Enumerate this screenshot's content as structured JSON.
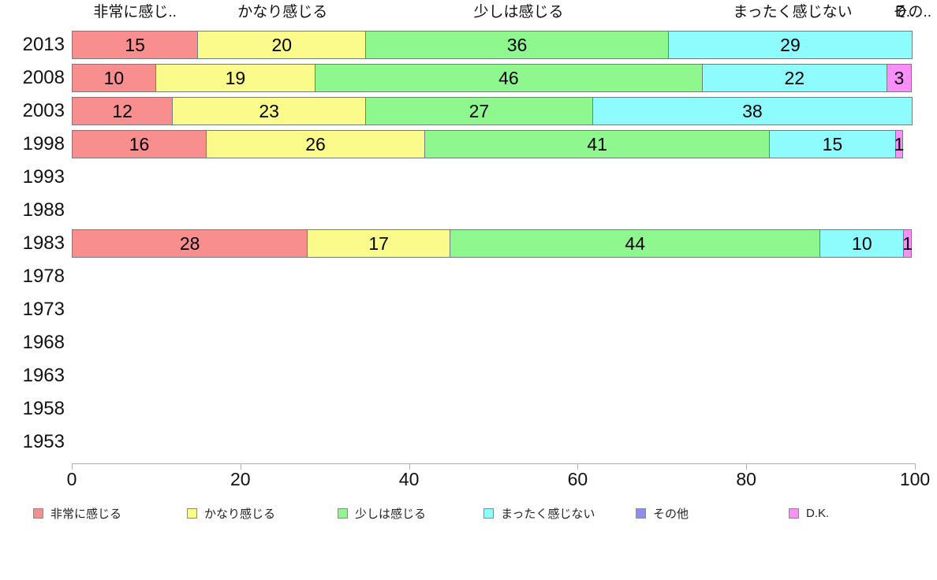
{
  "chart_data": {
    "type": "bar",
    "orientation": "horizontal",
    "stacked": true,
    "title": "",
    "xlabel": "",
    "ylabel": "",
    "xlim": [
      0,
      100
    ],
    "xticks": [
      "0",
      "20",
      "40",
      "60",
      "80",
      "100"
    ],
    "grid": false,
    "legend_position": "bottom",
    "categories": [
      "2013",
      "2008",
      "2003",
      "1998",
      "1993",
      "1988",
      "1983",
      "1978",
      "1973",
      "1968",
      "1963",
      "1958",
      "1953"
    ],
    "series": [
      {
        "name": "非常に感じる",
        "color": "#f98e8e",
        "values": [
          15,
          10,
          12,
          16,
          null,
          null,
          28,
          null,
          null,
          null,
          null,
          null,
          null
        ]
      },
      {
        "name": "かなり感じる",
        "color": "#fbfb8b",
        "values": [
          20,
          19,
          23,
          26,
          null,
          null,
          17,
          null,
          null,
          null,
          null,
          null,
          null
        ]
      },
      {
        "name": "少しは感じる",
        "color": "#8ef88e",
        "values": [
          36,
          46,
          27,
          41,
          null,
          null,
          44,
          null,
          null,
          null,
          null,
          null,
          null
        ]
      },
      {
        "name": "まったく感じない",
        "color": "#8efcfc",
        "values": [
          29,
          22,
          38,
          15,
          null,
          null,
          10,
          null,
          null,
          null,
          null,
          null,
          null
        ]
      },
      {
        "name": "その他",
        "color": "#8d8df2",
        "values": [
          null,
          null,
          null,
          null,
          null,
          null,
          null,
          null,
          null,
          null,
          null,
          null,
          null
        ]
      },
      {
        "name": "D.K.",
        "color": "#fc8efc",
        "values": [
          null,
          3,
          null,
          1,
          null,
          null,
          1,
          null,
          null,
          null,
          null,
          null,
          null
        ]
      }
    ],
    "top_labels": [
      {
        "text": "非常に感じ..",
        "center_value": 7.5
      },
      {
        "text": "かなり感じる",
        "center_value": 25
      },
      {
        "text": "少しは感じる",
        "center_value": 53
      },
      {
        "text": "まったく感じない",
        "center_value": 85.5
      },
      {
        "text": "その..",
        "center_value": 99.7
      },
      {
        "text": "D..",
        "center_value": 98.8
      }
    ],
    "legend": [
      {
        "label": "非常に感じる",
        "color": "#f98e8e"
      },
      {
        "label": "かなり感じる",
        "color": "#fbfb8b"
      },
      {
        "label": "少しは感じる",
        "color": "#8ef88e"
      },
      {
        "label": "まったく感じない",
        "color": "#8efcfc"
      },
      {
        "label": "その他",
        "color": "#8d8df2"
      },
      {
        "label": "D.K.",
        "color": "#fc8efc"
      }
    ],
    "colors": {
      "axis": "#b0b0b0",
      "text": "#111111",
      "segment_border": "#6f7f7f",
      "background": "#ffffff"
    }
  }
}
